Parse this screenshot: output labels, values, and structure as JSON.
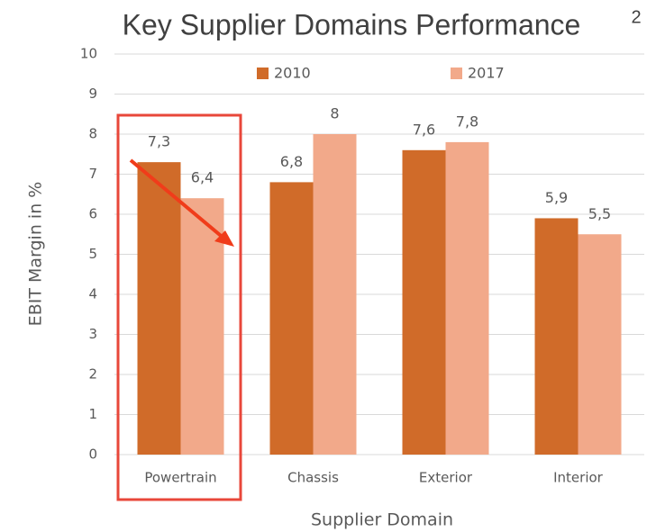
{
  "chart_data": {
    "type": "bar",
    "title": "Key Supplier Domains Performance",
    "title_superscript": "2",
    "x_label": "Supplier Domain",
    "y_label": "EBIT Margin in %",
    "categories": [
      "Powertrain",
      "Chassis",
      "Exterior",
      "Interior"
    ],
    "series": [
      {
        "name": "2010",
        "color": "#d06b29",
        "values": [
          7.3,
          6.8,
          7.6,
          5.9
        ],
        "value_labels": [
          "7,3",
          "6,8",
          "7,6",
          "5,9"
        ]
      },
      {
        "name": "2017",
        "color": "#f2a98a",
        "values": [
          6.4,
          8,
          7.8,
          5.5
        ],
        "value_labels": [
          "6,4",
          "8",
          "7,8",
          "5,5"
        ]
      }
    ],
    "ylim": [
      0,
      10
    ],
    "yticks": [
      0,
      1,
      2,
      3,
      4,
      5,
      6,
      7,
      8,
      9,
      10
    ],
    "grid": true,
    "legend": "top"
  }
}
